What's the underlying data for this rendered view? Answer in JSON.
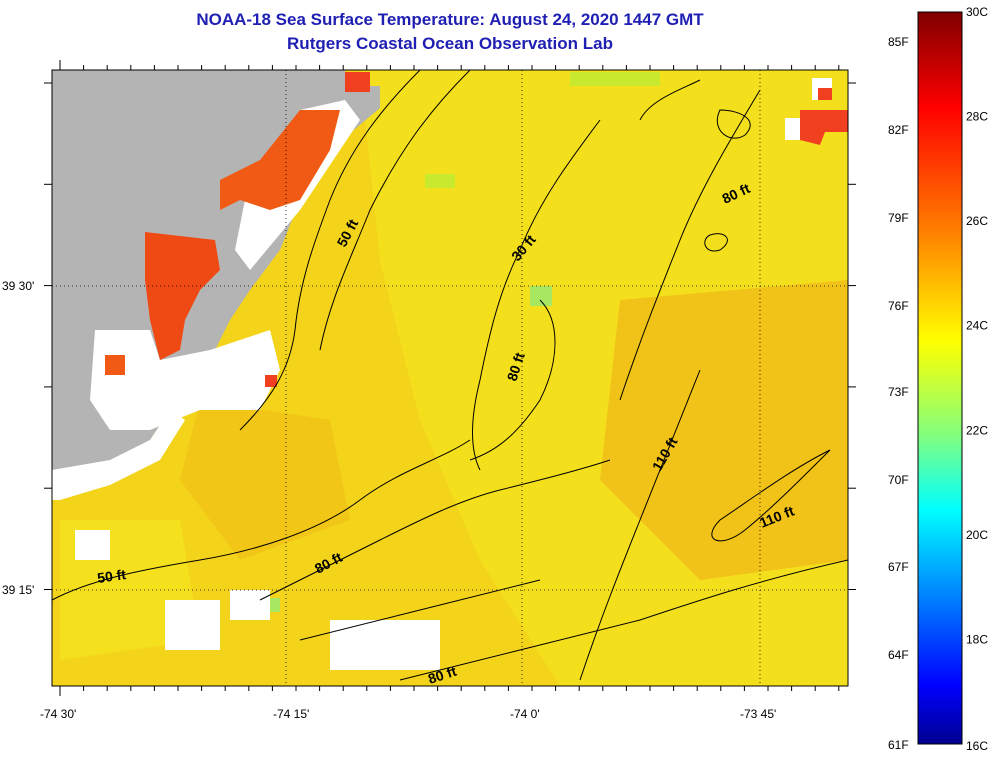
{
  "title": {
    "line1": "NOAA-18 Sea Surface Temperature:  August 24, 2020 1447 GMT",
    "line2": "Rutgers Coastal Ocean Observation Lab"
  },
  "map": {
    "x_ticks": [
      "-74 30'",
      "-74 15'",
      "-74 0'",
      "-73 45'"
    ],
    "y_ticks": [
      "39 30'",
      "39 15'"
    ],
    "contour_labels": [
      "50 ft",
      "30 ft",
      "80 ft",
      "80 ft",
      "110 ft",
      "110 ft",
      "80 ft",
      "50 ft",
      "80 ft"
    ],
    "colors": {
      "land": "#b4b4b4",
      "no_data": "#ffffff",
      "sea_main": "#f3d41a",
      "sea_light": "#f5e21a",
      "sea_warm": "#f2b814",
      "sea_cool": "#c8ea2e",
      "hot": "#f05a14"
    }
  },
  "colorbar": {
    "celsius": [
      "30C",
      "28C",
      "26C",
      "24C",
      "22C",
      "20C",
      "18C",
      "16C"
    ],
    "fahrenheit": [
      "85F",
      "82F",
      "79F",
      "76F",
      "73F",
      "70F",
      "67F",
      "64F",
      "61F"
    ],
    "gradient": [
      "#7f0000",
      "#ff0000",
      "#ff8000",
      "#ffff00",
      "#80ff80",
      "#00ffff",
      "#0080ff",
      "#0000ff",
      "#00008f"
    ]
  }
}
